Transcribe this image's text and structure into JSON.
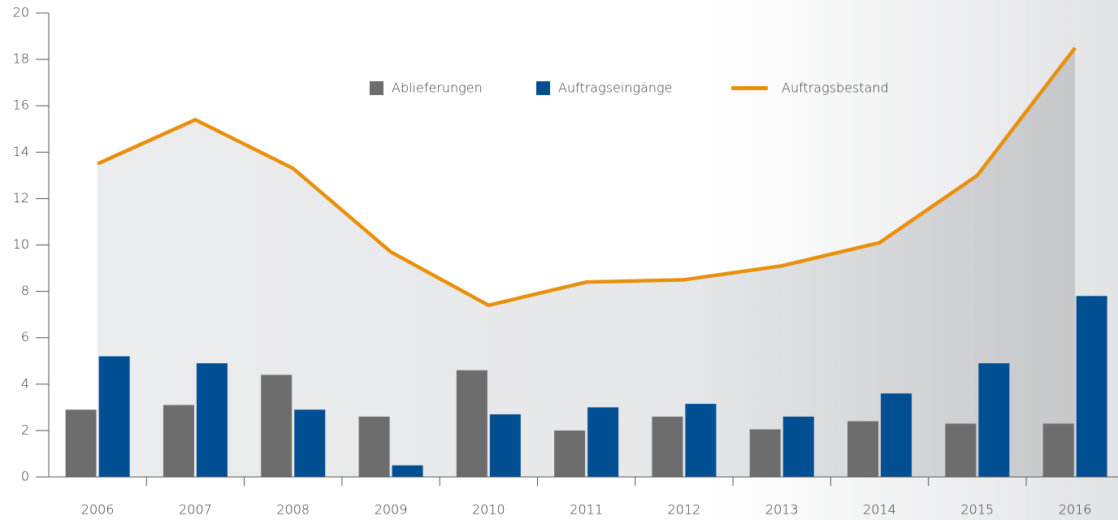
{
  "chart_data": {
    "type": "bar_line",
    "categories": [
      "2006",
      "2007",
      "2008",
      "2009",
      "2010",
      "2011",
      "2012",
      "2013",
      "2014",
      "2015",
      "2016"
    ],
    "series": [
      {
        "name": "Ablieferungen",
        "type": "bar",
        "color": "#6d6d6d",
        "values": [
          2.9,
          3.1,
          4.4,
          2.6,
          4.6,
          2.0,
          2.6,
          2.05,
          2.4,
          2.3,
          2.3
        ]
      },
      {
        "name": "Auftragseingänge",
        "type": "bar",
        "color": "#004f93",
        "values": [
          5.2,
          4.9,
          2.9,
          0.5,
          2.7,
          3.0,
          3.15,
          2.6,
          3.6,
          4.9,
          7.8
        ]
      },
      {
        "name": "Auftragsbestand",
        "type": "line",
        "color": "#e8900c",
        "values": [
          13.5,
          15.4,
          13.3,
          9.7,
          7.4,
          8.4,
          8.5,
          9.1,
          10.1,
          13.0,
          18.5
        ]
      }
    ],
    "ylim": [
      0,
      20
    ],
    "yticks": [
      0,
      2,
      4,
      6,
      8,
      10,
      12,
      14,
      16,
      18,
      20
    ]
  }
}
